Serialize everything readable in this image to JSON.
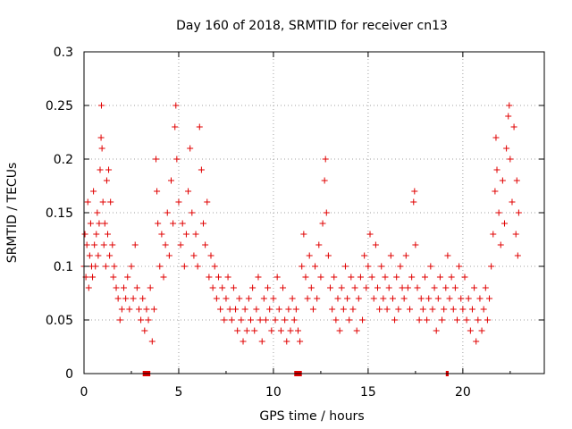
{
  "chart_data": {
    "type": "scatter",
    "title": "Day 160 of 2018, SRMTID for receiver cn13",
    "xlabel": "GPS time / hours",
    "ylabel": "SRMTID / TECUs",
    "xlim": [
      0,
      24.3
    ],
    "ylim": [
      0,
      0.3
    ],
    "x_ticks": [
      0,
      5,
      10,
      15,
      20
    ],
    "x_tick_labels": [
      "0",
      "5",
      "10",
      "15",
      "20"
    ],
    "y_ticks": [
      0,
      0.05,
      0.1,
      0.15,
      0.2,
      0.25,
      0.3
    ],
    "y_tick_labels": [
      "0",
      "0.05",
      "0.1",
      "0.15",
      "0.2",
      "0.25",
      "0.3"
    ],
    "grid": true,
    "marker": "+",
    "color": "#e00000",
    "series": [
      {
        "name": "SRMTID",
        "points": [
          [
            0.0,
            0.1
          ],
          [
            0.05,
            0.13
          ],
          [
            0.1,
            0.09
          ],
          [
            0.15,
            0.12
          ],
          [
            0.2,
            0.16
          ],
          [
            0.25,
            0.08
          ],
          [
            0.3,
            0.11
          ],
          [
            0.35,
            0.14
          ],
          [
            0.4,
            0.1
          ],
          [
            0.45,
            0.09
          ],
          [
            0.5,
            0.17
          ],
          [
            0.55,
            0.12
          ],
          [
            0.6,
            0.1
          ],
          [
            0.65,
            0.13
          ],
          [
            0.7,
            0.15
          ],
          [
            0.75,
            0.11
          ],
          [
            0.8,
            0.14
          ],
          [
            0.85,
            0.19
          ],
          [
            0.9,
            0.22
          ],
          [
            0.92,
            0.25
          ],
          [
            0.95,
            0.21
          ],
          [
            1.0,
            0.16
          ],
          [
            1.05,
            0.12
          ],
          [
            1.1,
            0.14
          ],
          [
            1.15,
            0.1
          ],
          [
            1.2,
            0.18
          ],
          [
            1.25,
            0.13
          ],
          [
            1.3,
            0.19
          ],
          [
            1.35,
            0.11
          ],
          [
            1.4,
            0.16
          ],
          [
            1.5,
            0.12
          ],
          [
            1.55,
            0.09
          ],
          [
            1.6,
            0.1
          ],
          [
            1.7,
            0.08
          ],
          [
            1.8,
            0.07
          ],
          [
            1.9,
            0.05
          ],
          [
            2.0,
            0.06
          ],
          [
            2.1,
            0.08
          ],
          [
            2.2,
            0.07
          ],
          [
            2.3,
            0.09
          ],
          [
            2.4,
            0.06
          ],
          [
            2.5,
            0.1
          ],
          [
            2.6,
            0.07
          ],
          [
            2.7,
            0.12
          ],
          [
            2.8,
            0.08
          ],
          [
            2.9,
            0.06
          ],
          [
            3.0,
            0.05
          ],
          [
            3.1,
            0.07
          ],
          [
            3.2,
            0.04
          ],
          [
            3.3,
            0.06
          ],
          [
            3.4,
            0.05
          ],
          [
            3.5,
            0.08
          ],
          [
            3.6,
            0.03
          ],
          [
            3.7,
            0.06
          ],
          [
            3.8,
            0.2
          ],
          [
            3.85,
            0.17
          ],
          [
            3.9,
            0.14
          ],
          [
            4.0,
            0.1
          ],
          [
            4.1,
            0.13
          ],
          [
            4.2,
            0.09
          ],
          [
            4.3,
            0.12
          ],
          [
            4.4,
            0.15
          ],
          [
            4.5,
            0.11
          ],
          [
            4.6,
            0.18
          ],
          [
            4.7,
            0.14
          ],
          [
            4.8,
            0.23
          ],
          [
            4.85,
            0.25
          ],
          [
            4.9,
            0.2
          ],
          [
            5.0,
            0.16
          ],
          [
            5.1,
            0.12
          ],
          [
            5.2,
            0.14
          ],
          [
            5.3,
            0.1
          ],
          [
            5.4,
            0.13
          ],
          [
            5.5,
            0.17
          ],
          [
            5.6,
            0.21
          ],
          [
            5.7,
            0.15
          ],
          [
            5.8,
            0.11
          ],
          [
            5.9,
            0.13
          ],
          [
            6.0,
            0.1
          ],
          [
            6.1,
            0.23
          ],
          [
            6.2,
            0.19
          ],
          [
            6.3,
            0.14
          ],
          [
            6.4,
            0.12
          ],
          [
            6.5,
            0.16
          ],
          [
            6.6,
            0.09
          ],
          [
            6.7,
            0.11
          ],
          [
            6.8,
            0.08
          ],
          [
            6.9,
            0.1
          ],
          [
            7.0,
            0.07
          ],
          [
            7.1,
            0.09
          ],
          [
            7.2,
            0.06
          ],
          [
            7.3,
            0.08
          ],
          [
            7.4,
            0.05
          ],
          [
            7.5,
            0.07
          ],
          [
            7.6,
            0.09
          ],
          [
            7.7,
            0.06
          ],
          [
            7.8,
            0.05
          ],
          [
            7.9,
            0.08
          ],
          [
            8.0,
            0.06
          ],
          [
            8.1,
            0.04
          ],
          [
            8.2,
            0.07
          ],
          [
            8.3,
            0.05
          ],
          [
            8.4,
            0.03
          ],
          [
            8.5,
            0.06
          ],
          [
            8.6,
            0.04
          ],
          [
            8.7,
            0.07
          ],
          [
            8.8,
            0.05
          ],
          [
            8.9,
            0.08
          ],
          [
            9.0,
            0.04
          ],
          [
            9.1,
            0.06
          ],
          [
            9.2,
            0.09
          ],
          [
            9.3,
            0.05
          ],
          [
            9.4,
            0.03
          ],
          [
            9.5,
            0.07
          ],
          [
            9.6,
            0.05
          ],
          [
            9.7,
            0.08
          ],
          [
            9.8,
            0.06
          ],
          [
            9.9,
            0.04
          ],
          [
            10.0,
            0.07
          ],
          [
            10.1,
            0.05
          ],
          [
            10.2,
            0.09
          ],
          [
            10.3,
            0.06
          ],
          [
            10.4,
            0.04
          ],
          [
            10.5,
            0.08
          ],
          [
            10.6,
            0.05
          ],
          [
            10.7,
            0.03
          ],
          [
            10.8,
            0.06
          ],
          [
            10.9,
            0.04
          ],
          [
            11.0,
            0.07
          ],
          [
            11.1,
            0.05
          ],
          [
            11.2,
            0.06
          ],
          [
            11.3,
            0.04
          ],
          [
            11.4,
            0.03
          ],
          [
            11.5,
            0.1
          ],
          [
            11.6,
            0.13
          ],
          [
            11.7,
            0.09
          ],
          [
            11.8,
            0.07
          ],
          [
            11.9,
            0.11
          ],
          [
            12.0,
            0.08
          ],
          [
            12.1,
            0.06
          ],
          [
            12.2,
            0.1
          ],
          [
            12.3,
            0.07
          ],
          [
            12.4,
            0.12
          ],
          [
            12.5,
            0.09
          ],
          [
            12.6,
            0.14
          ],
          [
            12.7,
            0.18
          ],
          [
            12.75,
            0.2
          ],
          [
            12.8,
            0.15
          ],
          [
            12.9,
            0.11
          ],
          [
            13.0,
            0.08
          ],
          [
            13.1,
            0.06
          ],
          [
            13.2,
            0.09
          ],
          [
            13.3,
            0.05
          ],
          [
            13.4,
            0.07
          ],
          [
            13.5,
            0.04
          ],
          [
            13.6,
            0.08
          ],
          [
            13.7,
            0.06
          ],
          [
            13.8,
            0.1
          ],
          [
            13.9,
            0.07
          ],
          [
            14.0,
            0.05
          ],
          [
            14.1,
            0.09
          ],
          [
            14.2,
            0.06
          ],
          [
            14.3,
            0.08
          ],
          [
            14.4,
            0.04
          ],
          [
            14.5,
            0.07
          ],
          [
            14.6,
            0.09
          ],
          [
            14.7,
            0.05
          ],
          [
            14.8,
            0.11
          ],
          [
            14.9,
            0.08
          ],
          [
            15.0,
            0.1
          ],
          [
            15.1,
            0.13
          ],
          [
            15.2,
            0.09
          ],
          [
            15.3,
            0.07
          ],
          [
            15.4,
            0.12
          ],
          [
            15.5,
            0.08
          ],
          [
            15.6,
            0.06
          ],
          [
            15.7,
            0.1
          ],
          [
            15.8,
            0.07
          ],
          [
            15.9,
            0.09
          ],
          [
            16.0,
            0.06
          ],
          [
            16.1,
            0.08
          ],
          [
            16.2,
            0.11
          ],
          [
            16.3,
            0.07
          ],
          [
            16.4,
            0.05
          ],
          [
            16.5,
            0.09
          ],
          [
            16.6,
            0.06
          ],
          [
            16.7,
            0.1
          ],
          [
            16.8,
            0.08
          ],
          [
            16.9,
            0.07
          ],
          [
            17.0,
            0.11
          ],
          [
            17.1,
            0.08
          ],
          [
            17.2,
            0.06
          ],
          [
            17.3,
            0.09
          ],
          [
            17.4,
            0.16
          ],
          [
            17.45,
            0.17
          ],
          [
            17.5,
            0.12
          ],
          [
            17.6,
            0.08
          ],
          [
            17.7,
            0.05
          ],
          [
            17.8,
            0.07
          ],
          [
            17.9,
            0.06
          ],
          [
            18.0,
            0.09
          ],
          [
            18.1,
            0.05
          ],
          [
            18.2,
            0.07
          ],
          [
            18.3,
            0.1
          ],
          [
            18.4,
            0.06
          ],
          [
            18.5,
            0.08
          ],
          [
            18.6,
            0.04
          ],
          [
            18.7,
            0.07
          ],
          [
            18.8,
            0.09
          ],
          [
            18.9,
            0.05
          ],
          [
            19.0,
            0.06
          ],
          [
            19.1,
            0.08
          ],
          [
            19.2,
            0.11
          ],
          [
            19.3,
            0.07
          ],
          [
            19.4,
            0.09
          ],
          [
            19.5,
            0.06
          ],
          [
            19.6,
            0.08
          ],
          [
            19.7,
            0.05
          ],
          [
            19.8,
            0.1
          ],
          [
            19.9,
            0.07
          ],
          [
            20.0,
            0.06
          ],
          [
            20.1,
            0.09
          ],
          [
            20.2,
            0.05
          ],
          [
            20.3,
            0.07
          ],
          [
            20.4,
            0.04
          ],
          [
            20.5,
            0.06
          ],
          [
            20.6,
            0.08
          ],
          [
            20.7,
            0.03
          ],
          [
            20.8,
            0.05
          ],
          [
            20.9,
            0.07
          ],
          [
            21.0,
            0.04
          ],
          [
            21.1,
            0.06
          ],
          [
            21.2,
            0.08
          ],
          [
            21.3,
            0.05
          ],
          [
            21.4,
            0.07
          ],
          [
            21.5,
            0.1
          ],
          [
            21.6,
            0.13
          ],
          [
            21.7,
            0.17
          ],
          [
            21.75,
            0.22
          ],
          [
            21.8,
            0.19
          ],
          [
            21.9,
            0.15
          ],
          [
            22.0,
            0.12
          ],
          [
            22.1,
            0.18
          ],
          [
            22.2,
            0.14
          ],
          [
            22.3,
            0.21
          ],
          [
            22.4,
            0.24
          ],
          [
            22.45,
            0.25
          ],
          [
            22.5,
            0.2
          ],
          [
            22.6,
            0.16
          ],
          [
            22.7,
            0.23
          ],
          [
            22.8,
            0.13
          ],
          [
            22.85,
            0.18
          ],
          [
            22.9,
            0.11
          ],
          [
            22.95,
            0.15
          ]
        ]
      }
    ],
    "bottom_markers": [
      {
        "x_start": 3.1,
        "x_end": 3.5
      },
      {
        "x_start": 11.1,
        "x_end": 11.5
      },
      {
        "x_start": 19.1,
        "x_end": 19.25
      }
    ]
  }
}
